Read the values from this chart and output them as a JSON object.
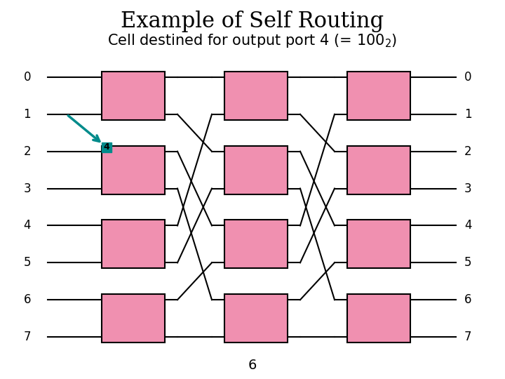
{
  "title_line1": "Example of Self Routing",
  "title_line2": "Cell destined for output port 4 (= 100",
  "subscript": "2",
  "subtitle_suffix": ")",
  "title_fontsize": 22,
  "subtitle_fontsize": 15,
  "background": "#ffffff",
  "box_color": "#f090b0",
  "box_edge_color": "#000000",
  "teal_color": "#008B8B",
  "stage_label": "6",
  "n_ports": 8,
  "n_stages": 3
}
